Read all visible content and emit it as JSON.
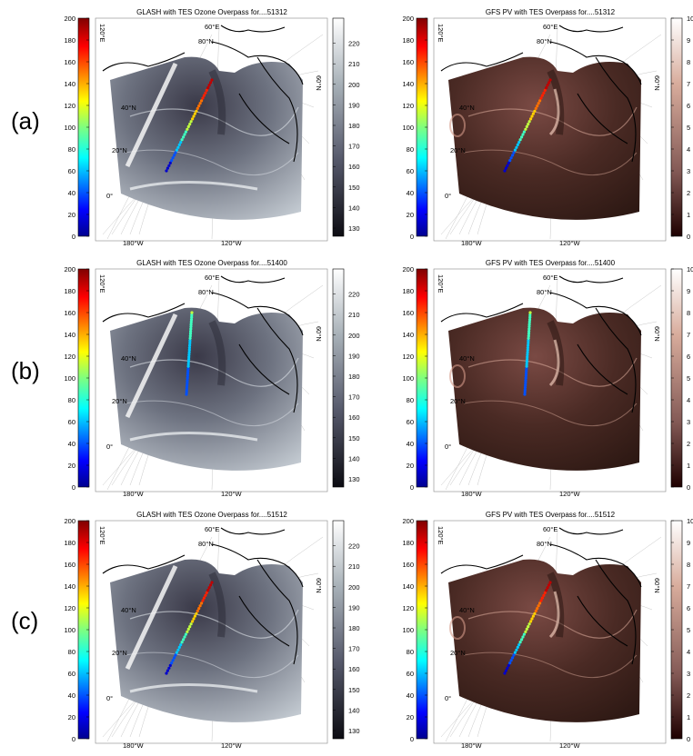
{
  "row_labels": [
    "(a)",
    "(b)",
    "(c)"
  ],
  "panels": [
    {
      "row": 0,
      "col": 0,
      "title": "GLASH with TES Ozone Overpass for....51312",
      "kind": "glash",
      "track": "diag"
    },
    {
      "row": 0,
      "col": 1,
      "title": "GFS  PV with TES Overpass for....51312",
      "kind": "pv",
      "track": "diag"
    },
    {
      "row": 1,
      "col": 0,
      "title": "GLASH with TES Ozone Overpass for....51400",
      "kind": "glash",
      "track": "vert"
    },
    {
      "row": 1,
      "col": 1,
      "title": "GFS  PV with TES Overpass for....51400",
      "kind": "pv",
      "track": "vert"
    },
    {
      "row": 2,
      "col": 0,
      "title": "GLASH with TES Ozone Overpass for....51512",
      "kind": "glash",
      "track": "diag"
    },
    {
      "row": 2,
      "col": 1,
      "title": "GFS  PV with TES Overpass for....51512",
      "kind": "pv",
      "track": "diag"
    }
  ],
  "colorbars": {
    "ozone": {
      "ticks": [
        "0",
        "20",
        "40",
        "60",
        "80",
        "100",
        "120",
        "140",
        "160",
        "180",
        "200"
      ],
      "colormap": "jet"
    },
    "glash": {
      "ticks": [
        "130",
        "140",
        "150",
        "160",
        "170",
        "180",
        "190",
        "200",
        "210",
        "220"
      ],
      "colormap": "gray"
    },
    "pv": {
      "ticks": [
        "0",
        "1",
        "2",
        "3",
        "4",
        "5",
        "6",
        "7",
        "8",
        "9",
        "10"
      ],
      "colormap": "pink"
    }
  },
  "map_labels": {
    "lon_bottom_left": "180°W",
    "lon_bottom_mid": "120°W",
    "lat_0": "0°",
    "lat_20": "20°N",
    "lat_40": "40°N",
    "lat_60": "60°N",
    "lat_80": "80°N",
    "lon_top_60e": "60°E",
    "lon_top_120e": "120°E"
  },
  "colors": {
    "glash_dark": "#2e2c3a",
    "glash_light": "#c8cfd6",
    "pv_dark": "#2b1612",
    "pv_light": "#e9c6b8"
  }
}
